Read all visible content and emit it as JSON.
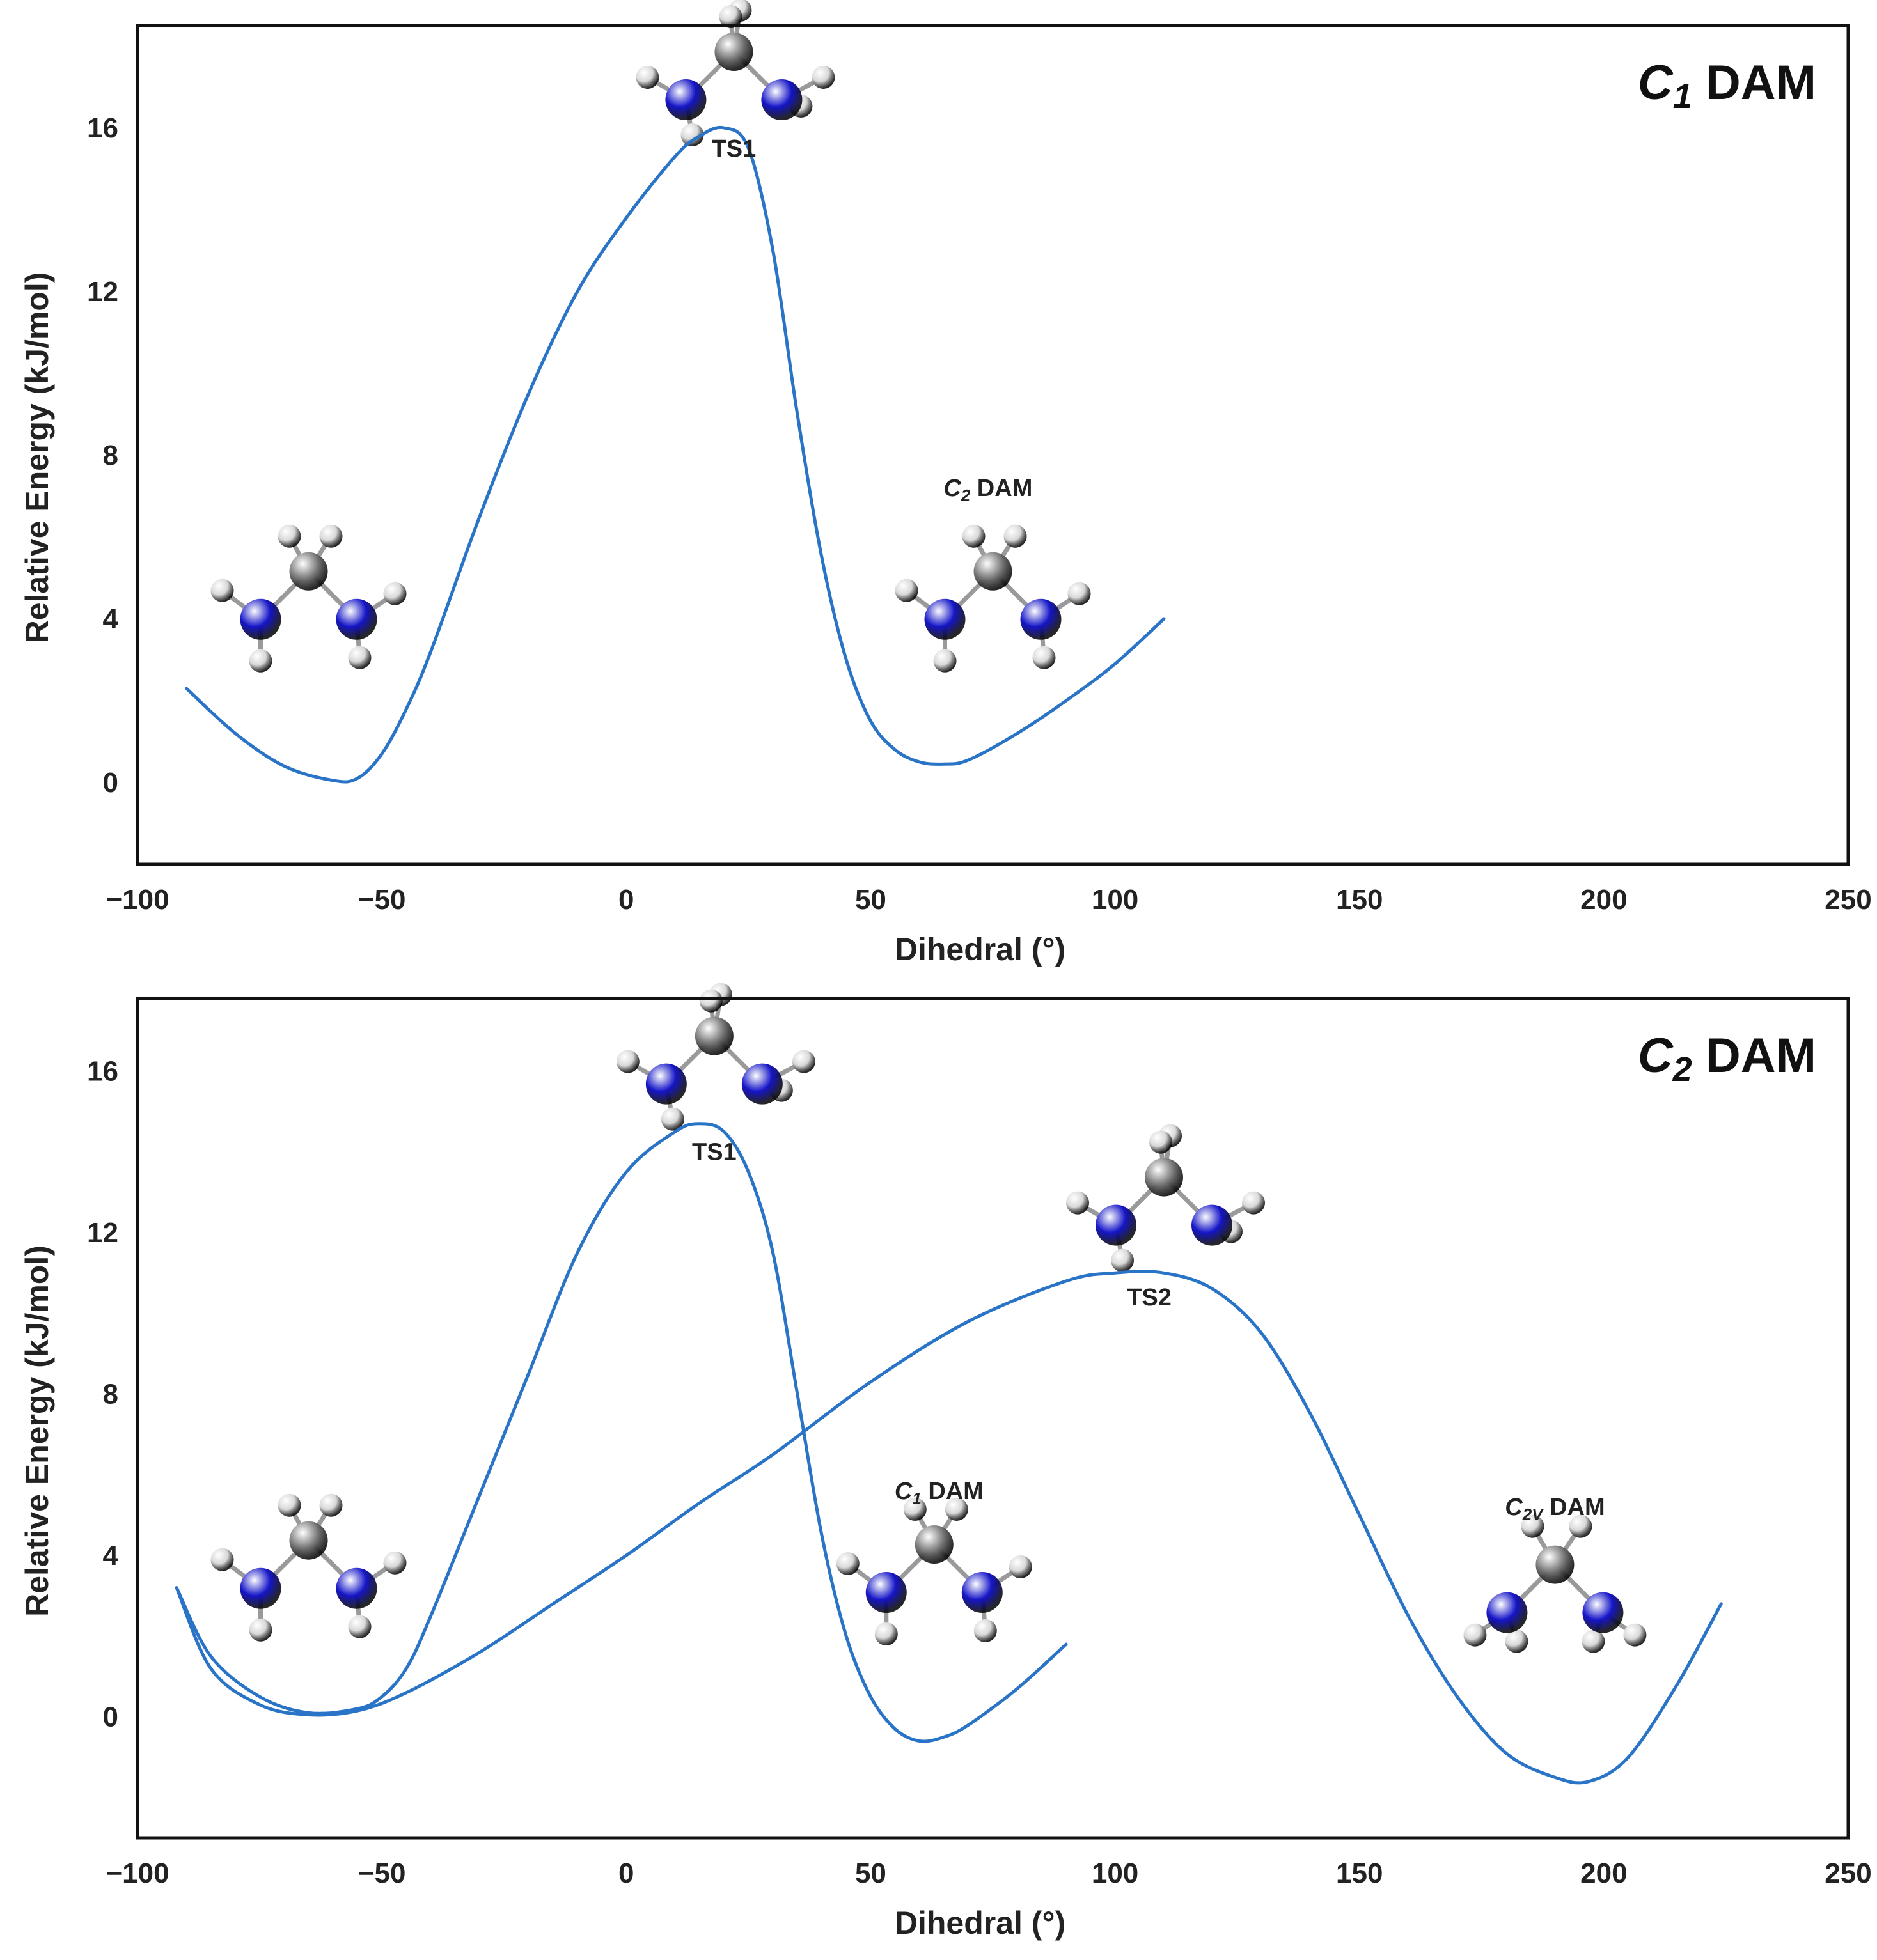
{
  "colors": {
    "curve": "#2a74c8",
    "nitrogen": "#1515c8",
    "carbon": "#7a7a7a",
    "hydrogen": "#d8d8d8"
  },
  "chart_data": [
    {
      "type": "line",
      "title_main": "C",
      "title_sub": "1",
      "title_rest": " DAM",
      "xlabel": "Dihedral (°)",
      "ylabel": "Relative Energy (kJ/mol)",
      "xlim": [
        -100,
        250
      ],
      "ylim": [
        -2,
        18.5
      ],
      "xticks": [
        -100,
        -50,
        0,
        50,
        100,
        150,
        200,
        250
      ],
      "yticks": [
        0,
        4,
        8,
        12,
        16
      ],
      "grid": false,
      "series": [
        {
          "x": [
            -90,
            -80,
            -70,
            -60,
            -55,
            -50,
            -45,
            -40,
            -30,
            -20,
            -10,
            0,
            10,
            15,
            20,
            25,
            30,
            35,
            40,
            45,
            50,
            55,
            60,
            65,
            70,
            80,
            90,
            100,
            110
          ],
          "y": [
            2.3,
            1.2,
            0.4,
            0.05,
            0.1,
            0.7,
            1.8,
            3.2,
            6.5,
            9.5,
            12.0,
            13.8,
            15.3,
            15.8,
            16.0,
            15.5,
            13.0,
            9.0,
            5.5,
            3.0,
            1.5,
            0.8,
            0.5,
            0.45,
            0.55,
            1.2,
            2.0,
            2.9,
            4.0
          ]
        }
      ],
      "annotations": [
        {
          "text": "TS1",
          "x": 22,
          "y": 15.3
        },
        {
          "text_main": "C",
          "text_sub": "2",
          "text_rest": " DAM",
          "x": 74,
          "y": 7.0
        }
      ]
    },
    {
      "type": "line",
      "title_main": "C",
      "title_sub": "2",
      "title_rest": " DAM",
      "xlabel": "Dihedral (°)",
      "ylabel": "Relative Energy (kJ/mol)",
      "xlim": [
        -100,
        250
      ],
      "ylim": [
        -3,
        17.8
      ],
      "xticks": [
        -100,
        -50,
        0,
        50,
        100,
        150,
        200,
        250
      ],
      "yticks": [
        0,
        4,
        8,
        12,
        16
      ],
      "grid": false,
      "series": [
        {
          "x": [
            -92,
            -85,
            -75,
            -65,
            -55,
            -50,
            -45,
            -40,
            -30,
            -20,
            -10,
            0,
            10,
            15,
            20,
            25,
            30,
            35,
            40,
            45,
            50,
            55,
            60,
            65,
            70,
            80,
            90
          ],
          "y": [
            3.2,
            1.5,
            0.5,
            0.1,
            0.2,
            0.5,
            1.2,
            2.5,
            5.5,
            8.5,
            11.5,
            13.5,
            14.5,
            14.7,
            14.5,
            13.5,
            11.5,
            8.0,
            4.5,
            2.0,
            0.5,
            -0.3,
            -0.6,
            -0.5,
            -0.2,
            0.7,
            1.8
          ]
        },
        {
          "x": [
            -92,
            -85,
            -75,
            -65,
            -55,
            -45,
            -30,
            -15,
            0,
            15,
            30,
            50,
            70,
            90,
            100,
            110,
            120,
            130,
            140,
            150,
            160,
            170,
            180,
            190,
            197,
            205,
            215,
            224
          ],
          "y": [
            3.2,
            1.2,
            0.3,
            0.05,
            0.15,
            0.6,
            1.6,
            2.8,
            4.0,
            5.3,
            6.5,
            8.3,
            9.8,
            10.8,
            11.0,
            11.0,
            10.6,
            9.5,
            7.5,
            5.0,
            2.5,
            0.5,
            -0.9,
            -1.5,
            -1.6,
            -1.0,
            0.8,
            2.8
          ]
        }
      ],
      "annotations": [
        {
          "text": "TS1",
          "x": 18,
          "y": 13.8
        },
        {
          "text": "TS2",
          "x": 107,
          "y": 10.2
        },
        {
          "text_main": "C",
          "text_sub": "1",
          "text_rest": " DAM",
          "x": 64,
          "y": 5.4
        },
        {
          "text_main": "C",
          "text_sub": "2V",
          "text_rest": " DAM",
          "x": 190,
          "y": 5.0
        }
      ]
    }
  ]
}
